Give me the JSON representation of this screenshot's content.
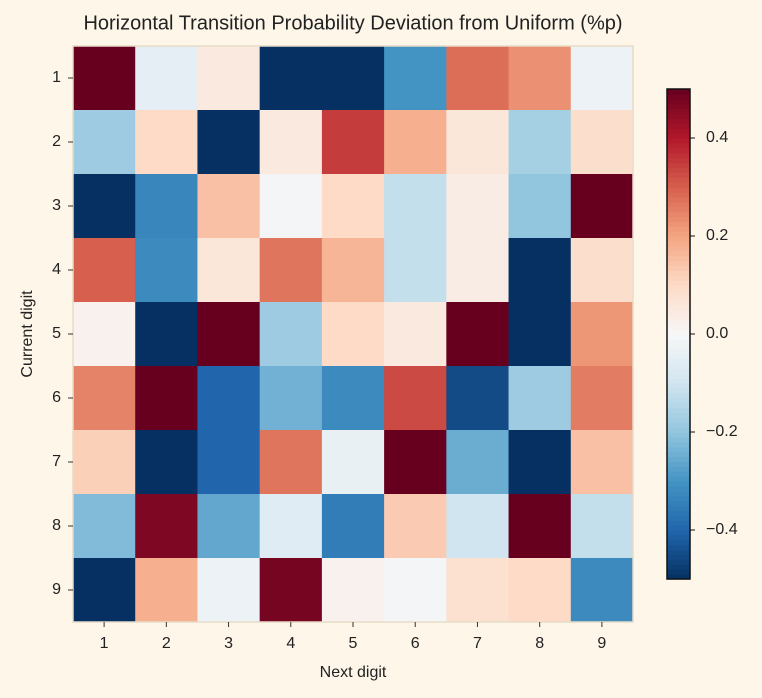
{
  "chart_data": {
    "type": "heatmap",
    "title": "Horizontal Transition Probability Deviation from Uniform (%p)",
    "x_label": "Next digit",
    "y_label": "Current digit",
    "x_categories": [
      "1",
      "2",
      "3",
      "4",
      "5",
      "6",
      "7",
      "8",
      "9"
    ],
    "y_categories": [
      "1",
      "2",
      "3",
      "4",
      "5",
      "6",
      "7",
      "8",
      "9"
    ],
    "values": [
      [
        0.5,
        -0.05,
        0.05,
        -0.5,
        -0.5,
        -0.3,
        0.28,
        0.23,
        -0.03
      ],
      [
        -0.18,
        0.1,
        -0.5,
        0.05,
        0.35,
        0.18,
        0.06,
        -0.17,
        0.09
      ],
      [
        -0.5,
        -0.33,
        0.15,
        -0.01,
        0.1,
        -0.12,
        0.04,
        -0.2,
        0.5
      ],
      [
        0.3,
        -0.32,
        0.06,
        0.27,
        0.17,
        -0.12,
        0.04,
        -0.5,
        0.09
      ],
      [
        0.02,
        -0.5,
        0.5,
        -0.18,
        0.1,
        0.05,
        0.5,
        -0.5,
        0.22
      ],
      [
        0.25,
        0.5,
        -0.4,
        -0.24,
        -0.32,
        0.33,
        -0.45,
        -0.18,
        0.26
      ],
      [
        0.12,
        -0.5,
        -0.4,
        0.27,
        -0.04,
        0.5,
        -0.25,
        -0.5,
        0.15
      ],
      [
        -0.22,
        0.47,
        -0.26,
        -0.06,
        -0.35,
        0.13,
        -0.1,
        0.5,
        -0.12
      ],
      [
        -0.5,
        0.18,
        -0.03,
        0.48,
        0.02,
        -0.01,
        0.08,
        0.1,
        -0.32
      ]
    ],
    "colormap": "RdBu_r",
    "zlim": [
      -0.5,
      0.5
    ],
    "colorbar_ticks": [
      {
        "value": -0.4,
        "label": "−0.4"
      },
      {
        "value": -0.2,
        "label": "−0.2"
      },
      {
        "value": 0,
        "label": "0.0"
      },
      0.2,
      0.4
    ]
  }
}
